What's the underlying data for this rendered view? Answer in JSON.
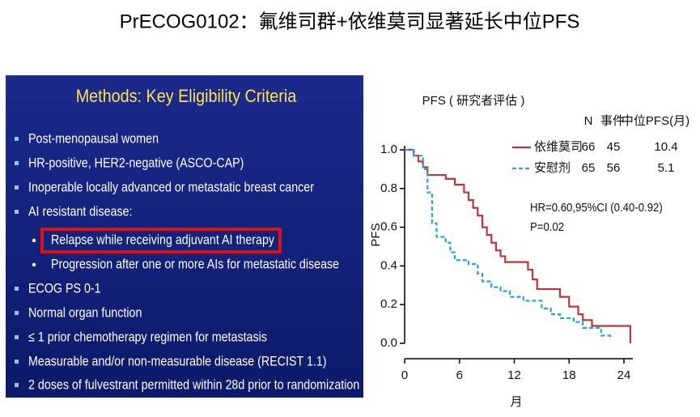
{
  "title": "PrECOG0102：氟维司群+依维莫司显著延长中位PFS",
  "panel": {
    "heading": "Methods: Key Eligibility Criteria",
    "items": [
      "Post-menopausal women",
      "HR-positive, HER2-negative (ASCO-CAP)",
      "Inoperable locally advanced or metastatic breast cancer",
      "AI resistant disease:",
      "Relapse while receiving adjuvant AI therapy",
      "Progression after one or more AIs for metastatic disease",
      "ECOG PS 0-1",
      "Normal organ function",
      "≤ 1 prior chemotherapy regimen for metastasis",
      "Measurable and/or non-measurable disease (RECIST 1.1)",
      "2 doses of fulvestrant permitted within 28d prior to randomization"
    ]
  },
  "chart_data": {
    "type": "line",
    "drawstyle": "steps-post",
    "title": "PFS ( 研究者评估 )",
    "x_label": "月",
    "y_label": "PFS",
    "table_headers": [
      "N",
      "事件",
      "中位PFS(月)"
    ],
    "xlim": [
      0,
      25
    ],
    "xticks": [
      0,
      6,
      12,
      18,
      24
    ],
    "ylim": [
      0,
      1
    ],
    "yticks": [
      {
        "value": 0,
        "label": "0.0"
      },
      0.2,
      0.4,
      0.6,
      0.8,
      {
        "value": 1,
        "label": "1.0"
      }
    ],
    "series": [
      {
        "name": "依维莫司",
        "color": "#b8383a",
        "dashed": false,
        "n": 66,
        "events": 45,
        "median": 10.4,
        "x": [
          0,
          1,
          1.5,
          2,
          2.5,
          4.5,
          5.5,
          6.5,
          7,
          7.5,
          8,
          8.5,
          9,
          9.5,
          10,
          10.5,
          11,
          13.5,
          14,
          14.5,
          17,
          18,
          19,
          19.5,
          20.5,
          24.7
        ],
        "values": [
          1.0,
          0.97,
          0.94,
          0.91,
          0.87,
          0.85,
          0.82,
          0.78,
          0.74,
          0.7,
          0.66,
          0.6,
          0.56,
          0.52,
          0.48,
          0.45,
          0.42,
          0.38,
          0.33,
          0.28,
          0.24,
          0.19,
          0.15,
          0.12,
          0.09,
          0
        ]
      },
      {
        "name": "安慰剂",
        "color": "#2aa3d4",
        "dashed": true,
        "n": 65,
        "events": 56,
        "median": 5.1,
        "x": [
          0,
          1,
          2,
          2.5,
          3,
          3.5,
          4.5,
          5,
          5.5,
          7,
          8,
          8.5,
          9.5,
          10.5,
          11.5,
          13,
          15,
          16,
          17,
          18.5,
          19.5,
          21.5,
          22.5
        ],
        "values": [
          1.0,
          0.97,
          0.9,
          0.78,
          0.62,
          0.55,
          0.52,
          0.47,
          0.43,
          0.41,
          0.36,
          0.32,
          0.29,
          0.27,
          0.24,
          0.22,
          0.18,
          0.15,
          0.13,
          0.11,
          0.08,
          0.04,
          0.02
        ]
      }
    ],
    "annotations": [
      {
        "text": "HR=0.60,95%CI (0.40-0.92)",
        "color": "#d01818"
      },
      {
        "text": "P=0.02",
        "color": "#000000"
      }
    ]
  }
}
